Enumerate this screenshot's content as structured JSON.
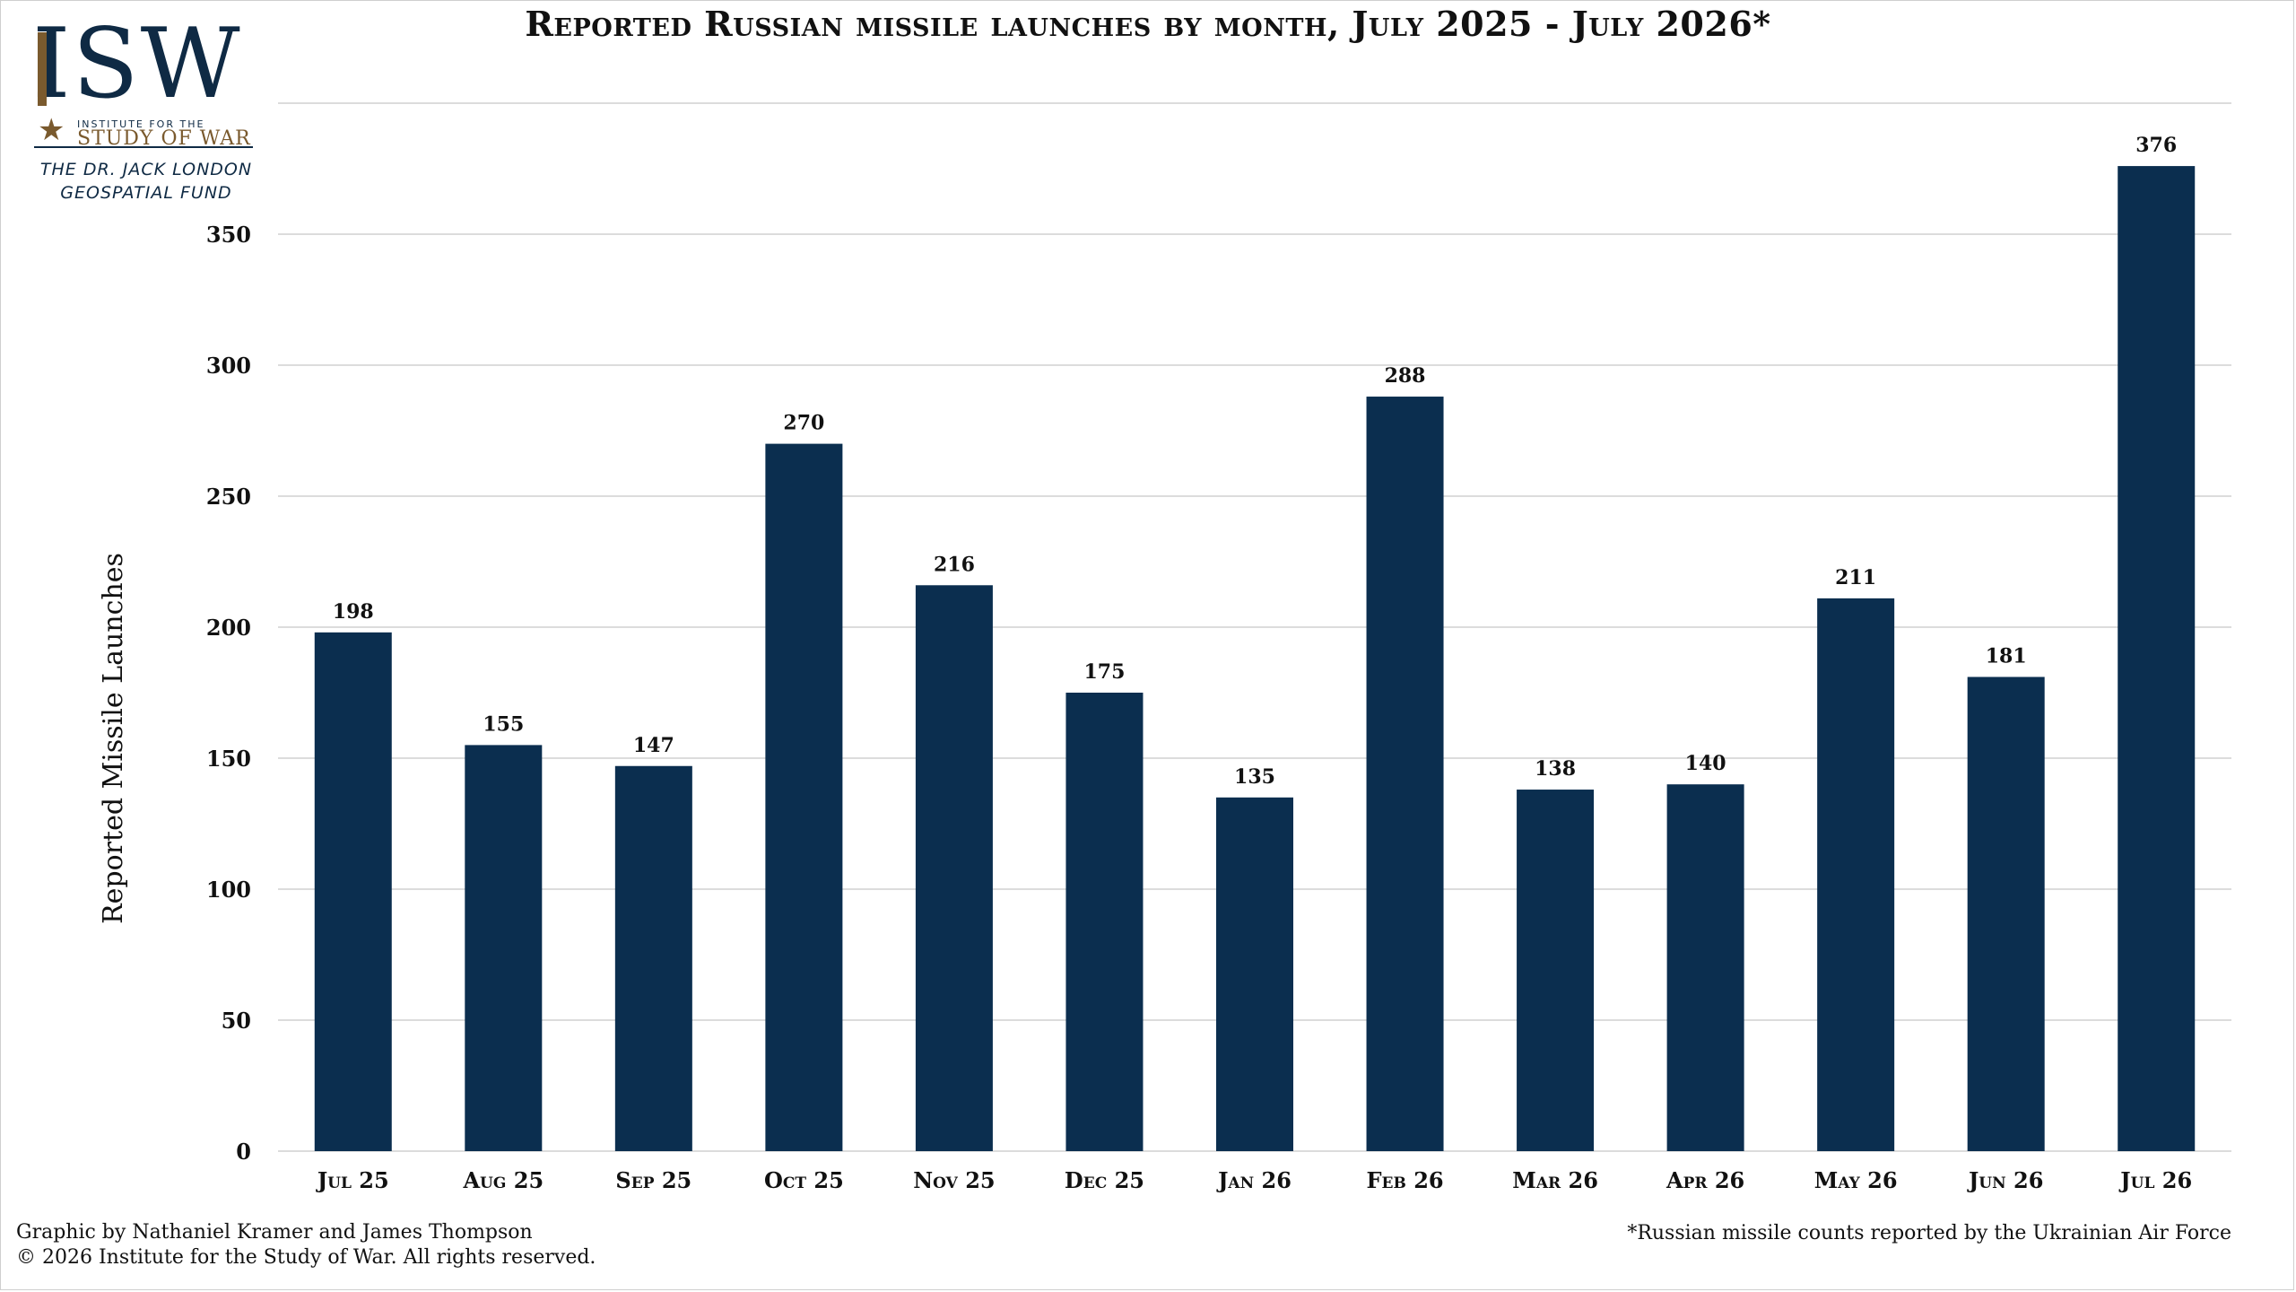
{
  "logo": {
    "letters": "ISW",
    "institute": "INSTITUTE FOR THE",
    "study": "STUDY OF WAR",
    "fund_line1": "THE DR. JACK LONDON",
    "fund_line2": "GEOSPATIAL FUND"
  },
  "footer": {
    "credit_line1": "Graphic by Nathaniel Kramer and James Thompson",
    "credit_line2": "© 2026 Institute for the Study of War. All rights reserved.",
    "note": "*Russian missile counts reported by the Ukrainian Air Force"
  },
  "colors": {
    "bar": "#0b2e4f",
    "grid": "#dcdcdc",
    "logo_navy": "#0f2a44",
    "logo_gold": "#7a5a2e"
  },
  "chart_data": {
    "type": "bar",
    "title": "Reported Russian missile launches by month, July 2025 - July 2026*",
    "xlabel": "",
    "ylabel": "Reported Missile Launches",
    "categories": [
      "Jul 25",
      "Aug 25",
      "Sep 25",
      "Oct 25",
      "Nov 25",
      "Dec 25",
      "Jan 26",
      "Feb 26",
      "Mar 26",
      "Apr 26",
      "May 26",
      "Jun 26",
      "Jul 26"
    ],
    "values": [
      198,
      155,
      147,
      270,
      216,
      175,
      135,
      288,
      138,
      140,
      211,
      181,
      376
    ],
    "ylim": [
      0,
      400
    ],
    "yticks": [
      0,
      50,
      100,
      150,
      200,
      250,
      300,
      350
    ],
    "grid": true,
    "data_labels": true
  }
}
